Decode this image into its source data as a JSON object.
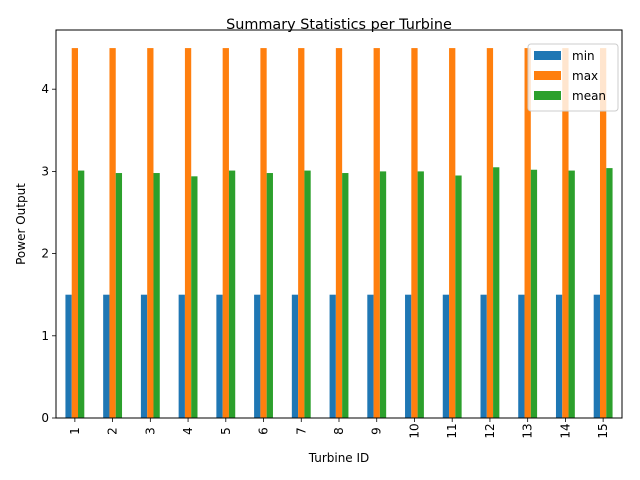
{
  "chart_data": {
    "type": "bar",
    "title": "Summary Statistics per Turbine",
    "xlabel": "Turbine ID",
    "ylabel": "Power Output",
    "categories": [
      "1",
      "2",
      "3",
      "4",
      "5",
      "6",
      "7",
      "8",
      "9",
      "10",
      "11",
      "12",
      "13",
      "14",
      "15"
    ],
    "ylim": [
      0,
      4.72
    ],
    "yticks": [
      0,
      1,
      2,
      3,
      4
    ],
    "grid": false,
    "legend_position": "top-right",
    "series": [
      {
        "name": "min",
        "color": "#1f77b4",
        "values": [
          1.5,
          1.5,
          1.5,
          1.5,
          1.5,
          1.5,
          1.5,
          1.5,
          1.5,
          1.5,
          1.5,
          1.5,
          1.5,
          1.5,
          1.5
        ]
      },
      {
        "name": "max",
        "color": "#ff7f0e",
        "values": [
          4.5,
          4.5,
          4.5,
          4.5,
          4.5,
          4.5,
          4.5,
          4.5,
          4.5,
          4.5,
          4.5,
          4.5,
          4.5,
          4.5,
          4.5
        ]
      },
      {
        "name": "mean",
        "color": "#2ca02c",
        "values": [
          3.01,
          2.98,
          2.98,
          2.94,
          3.01,
          2.98,
          3.01,
          2.98,
          3.0,
          3.0,
          2.95,
          3.05,
          3.02,
          3.01,
          3.04
        ]
      }
    ]
  }
}
